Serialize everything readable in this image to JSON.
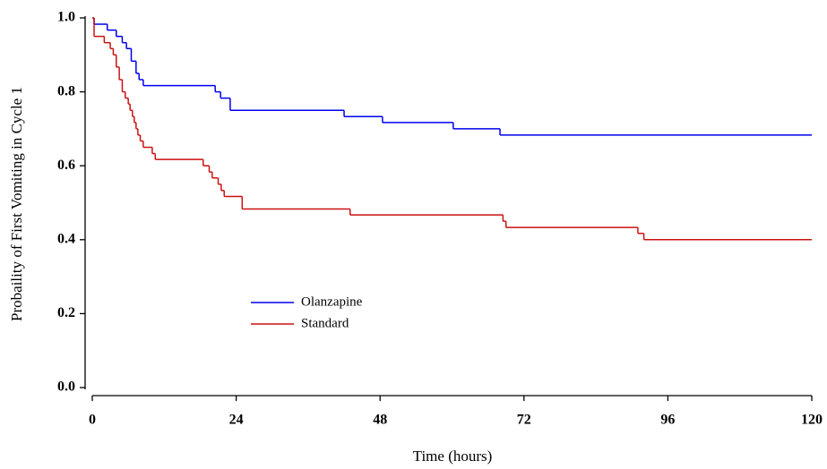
{
  "chart_data": {
    "type": "step",
    "xlabel": "Time (hours)",
    "ylabel": "Probaility of First Vomiting in Cycle 1",
    "xlim": [
      0,
      120
    ],
    "xticks": [
      0,
      24,
      48,
      72,
      96,
      120
    ],
    "ylim": [
      0,
      1
    ],
    "yticks": [
      {
        "value": 0,
        "label": "0.0"
      },
      0.2,
      0.4,
      0.6,
      0.8,
      {
        "value": 1,
        "label": "1.0"
      }
    ],
    "series": [
      {
        "name": "Olanzapine",
        "color": "#0000ee",
        "x": [
          0,
          0.3,
          2.5,
          4,
          5,
          5.7,
          6.5,
          7.3,
          7.8,
          8.5,
          20.5,
          21.4,
          23,
          42,
          48.4,
          60.2,
          68,
          120
        ],
        "values": [
          1,
          0.983,
          0.967,
          0.95,
          0.933,
          0.917,
          0.883,
          0.85,
          0.833,
          0.817,
          0.8,
          0.783,
          0.75,
          0.733,
          0.717,
          0.7,
          0.683,
          0.683
        ]
      },
      {
        "name": "Standard",
        "color": "#cc1111",
        "x": [
          0,
          0.3,
          2,
          3,
          3.5,
          4,
          4.5,
          5,
          5.5,
          6,
          6.3,
          6.7,
          7,
          7.3,
          7.6,
          8,
          8.5,
          10,
          10.5,
          18.5,
          19.5,
          20,
          21,
          21.5,
          22,
          25,
          43,
          68.5,
          69,
          91,
          92,
          120
        ],
        "values": [
          1,
          0.95,
          0.933,
          0.917,
          0.9,
          0.867,
          0.833,
          0.8,
          0.783,
          0.767,
          0.75,
          0.733,
          0.717,
          0.7,
          0.683,
          0.667,
          0.65,
          0.633,
          0.617,
          0.6,
          0.583,
          0.567,
          0.55,
          0.533,
          0.517,
          0.483,
          0.467,
          0.45,
          0.433,
          0.417,
          0.4,
          0.4
        ]
      }
    ]
  }
}
